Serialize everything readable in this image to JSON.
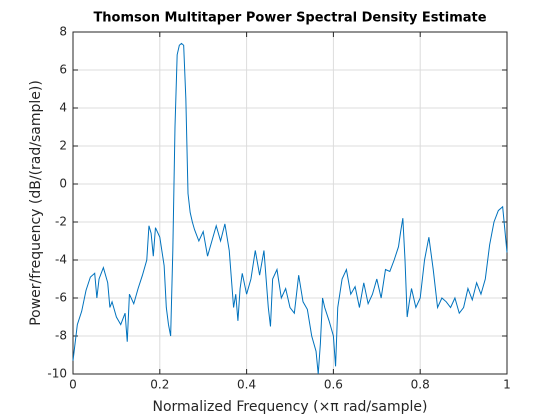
{
  "chart_data": {
    "type": "line",
    "title": "Thomson Multitaper Power Spectral Density Estimate",
    "xlabel": "Normalized Frequency  (×π rad/sample)",
    "ylabel": "Power/frequency (dB/(rad/sample))",
    "color": "#0072bd",
    "grid": true,
    "xlim": [
      0,
      1
    ],
    "ylim": [
      -10,
      8
    ],
    "xticks": [
      0,
      0.2,
      0.4,
      0.6,
      0.8,
      1
    ],
    "yticks": [
      -10,
      -8,
      -6,
      -4,
      -2,
      0,
      2,
      4,
      6,
      8
    ],
    "x": [
      0,
      0.01,
      0.02,
      0.03,
      0.04,
      0.05,
      0.055,
      0.06,
      0.07,
      0.08,
      0.085,
      0.09,
      0.1,
      0.11,
      0.12,
      0.125,
      0.13,
      0.14,
      0.15,
      0.16,
      0.17,
      0.175,
      0.18,
      0.185,
      0.19,
      0.2,
      0.21,
      0.215,
      0.22,
      0.225,
      0.23,
      0.235,
      0.24,
      0.245,
      0.25,
      0.255,
      0.26,
      0.265,
      0.27,
      0.275,
      0.28,
      0.29,
      0.3,
      0.31,
      0.32,
      0.33,
      0.34,
      0.35,
      0.36,
      0.365,
      0.37,
      0.375,
      0.38,
      0.385,
      0.39,
      0.4,
      0.41,
      0.42,
      0.43,
      0.44,
      0.45,
      0.455,
      0.46,
      0.47,
      0.48,
      0.49,
      0.5,
      0.51,
      0.52,
      0.53,
      0.54,
      0.55,
      0.56,
      0.565,
      0.57,
      0.575,
      0.58,
      0.59,
      0.6,
      0.605,
      0.61,
      0.62,
      0.63,
      0.64,
      0.65,
      0.66,
      0.67,
      0.68,
      0.69,
      0.7,
      0.71,
      0.72,
      0.73,
      0.74,
      0.75,
      0.755,
      0.76,
      0.765,
      0.77,
      0.775,
      0.78,
      0.79,
      0.8,
      0.81,
      0.82,
      0.83,
      0.84,
      0.85,
      0.86,
      0.87,
      0.88,
      0.89,
      0.9,
      0.91,
      0.92,
      0.93,
      0.94,
      0.95,
      0.96,
      0.97,
      0.98,
      0.99,
      1
    ],
    "values": [
      -9.3,
      -7.4,
      -6.7,
      -5.6,
      -4.9,
      -4.7,
      -6,
      -5,
      -4.4,
      -5.2,
      -6.5,
      -6.2,
      -7,
      -7.4,
      -6.8,
      -8.3,
      -5.8,
      -6.3,
      -5.5,
      -4.8,
      -4,
      -2.2,
      -2.6,
      -3.8,
      -2.3,
      -2.8,
      -4.3,
      -6.5,
      -7.4,
      -8,
      -3.5,
      3,
      6.8,
      7.3,
      7.4,
      7.3,
      4.5,
      -0.5,
      -1.5,
      -2,
      -2.4,
      -3,
      -2.5,
      -3.8,
      -3,
      -2.2,
      -3,
      -2.1,
      -3.5,
      -5,
      -6.5,
      -5.8,
      -7.2,
      -5.5,
      -4.7,
      -5.8,
      -5,
      -3.5,
      -4.8,
      -3.5,
      -6.5,
      -7.5,
      -5,
      -4.5,
      -6,
      -5.5,
      -6.5,
      -6.8,
      -4.8,
      -6.2,
      -6.6,
      -8,
      -8.8,
      -10,
      -8.4,
      -6,
      -6.5,
      -7.2,
      -8,
      -9.6,
      -6.5,
      -5,
      -4.5,
      -5.8,
      -5.4,
      -6.5,
      -5.2,
      -6.3,
      -5.8,
      -5,
      -6,
      -4.5,
      -4.6,
      -4,
      -3.3,
      -2.5,
      -1.8,
      -4,
      -7,
      -6.2,
      -5.5,
      -6.5,
      -6,
      -4,
      -2.8,
      -4.5,
      -6.5,
      -6,
      -6.2,
      -6.5,
      -6,
      -6.8,
      -6.5,
      -5.5,
      -6.1,
      -5.2,
      -5.8,
      -5,
      -3.2,
      -2,
      -1.4,
      -1.2,
      -3.6
    ]
  }
}
